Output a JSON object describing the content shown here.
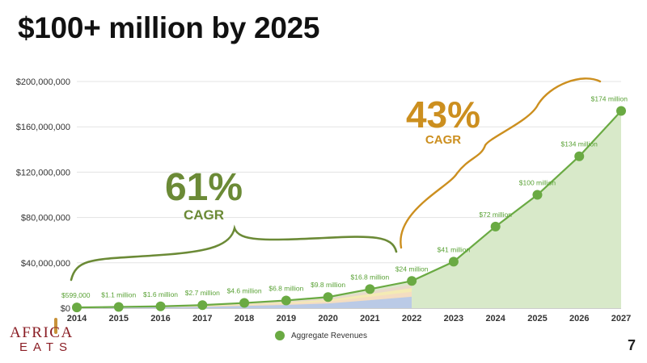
{
  "slide": {
    "title": "$100+ million by 2025",
    "page_number": "7",
    "logo": {
      "top": "AFRICA",
      "bottom": "EATS",
      "color": "#8a1d24",
      "accent": "#c8923a"
    }
  },
  "annotations": {
    "left_cagr_value": "61%",
    "left_cagr_label": "CAGR",
    "right_cagr_value": "43%",
    "right_cagr_label": "CAGR",
    "left_color": "#6b8a36",
    "right_color": "#cc8f1f"
  },
  "chart_data": {
    "type": "area",
    "x": [
      "2014",
      "2015",
      "2016",
      "2017",
      "2018",
      "2019",
      "2020",
      "2021",
      "2022",
      "2023",
      "2024",
      "2025",
      "2026",
      "2027"
    ],
    "series": [
      {
        "name": "Aggregate Revenues",
        "values": [
          599000,
          1100000,
          1600000,
          2700000,
          4600000,
          6800000,
          9800000,
          16800000,
          24000000,
          41000000,
          72000000,
          100000000,
          134000000,
          174000000
        ],
        "labels": [
          "$599,000",
          "$1.1 million",
          "$1.6 million",
          "$2.7 million",
          "$4.6 million",
          "$6.8 million",
          "$9.8 million",
          "$16.8 million",
          "$24 million",
          "$41 million",
          "$72 million",
          "$100 million",
          "$134 million",
          "$174 million"
        ],
        "color": "#6aaa43",
        "fill": "#d8e9c9"
      }
    ],
    "ylim": [
      0,
      200000000
    ],
    "yticks": [
      0,
      40000000,
      80000000,
      120000000,
      160000000,
      200000000
    ],
    "ytick_labels": [
      "$0",
      "$40,000,000",
      "$80,000,000",
      "$120,000,000",
      "$160,000,000",
      "$200,000,000"
    ],
    "grid": true,
    "legend_position": "bottom",
    "breakdown_colors": [
      "#b6c8e8",
      "#f3dcc2",
      "#f4ecb2",
      "#ead9c9",
      "#d9e6c8"
    ]
  }
}
